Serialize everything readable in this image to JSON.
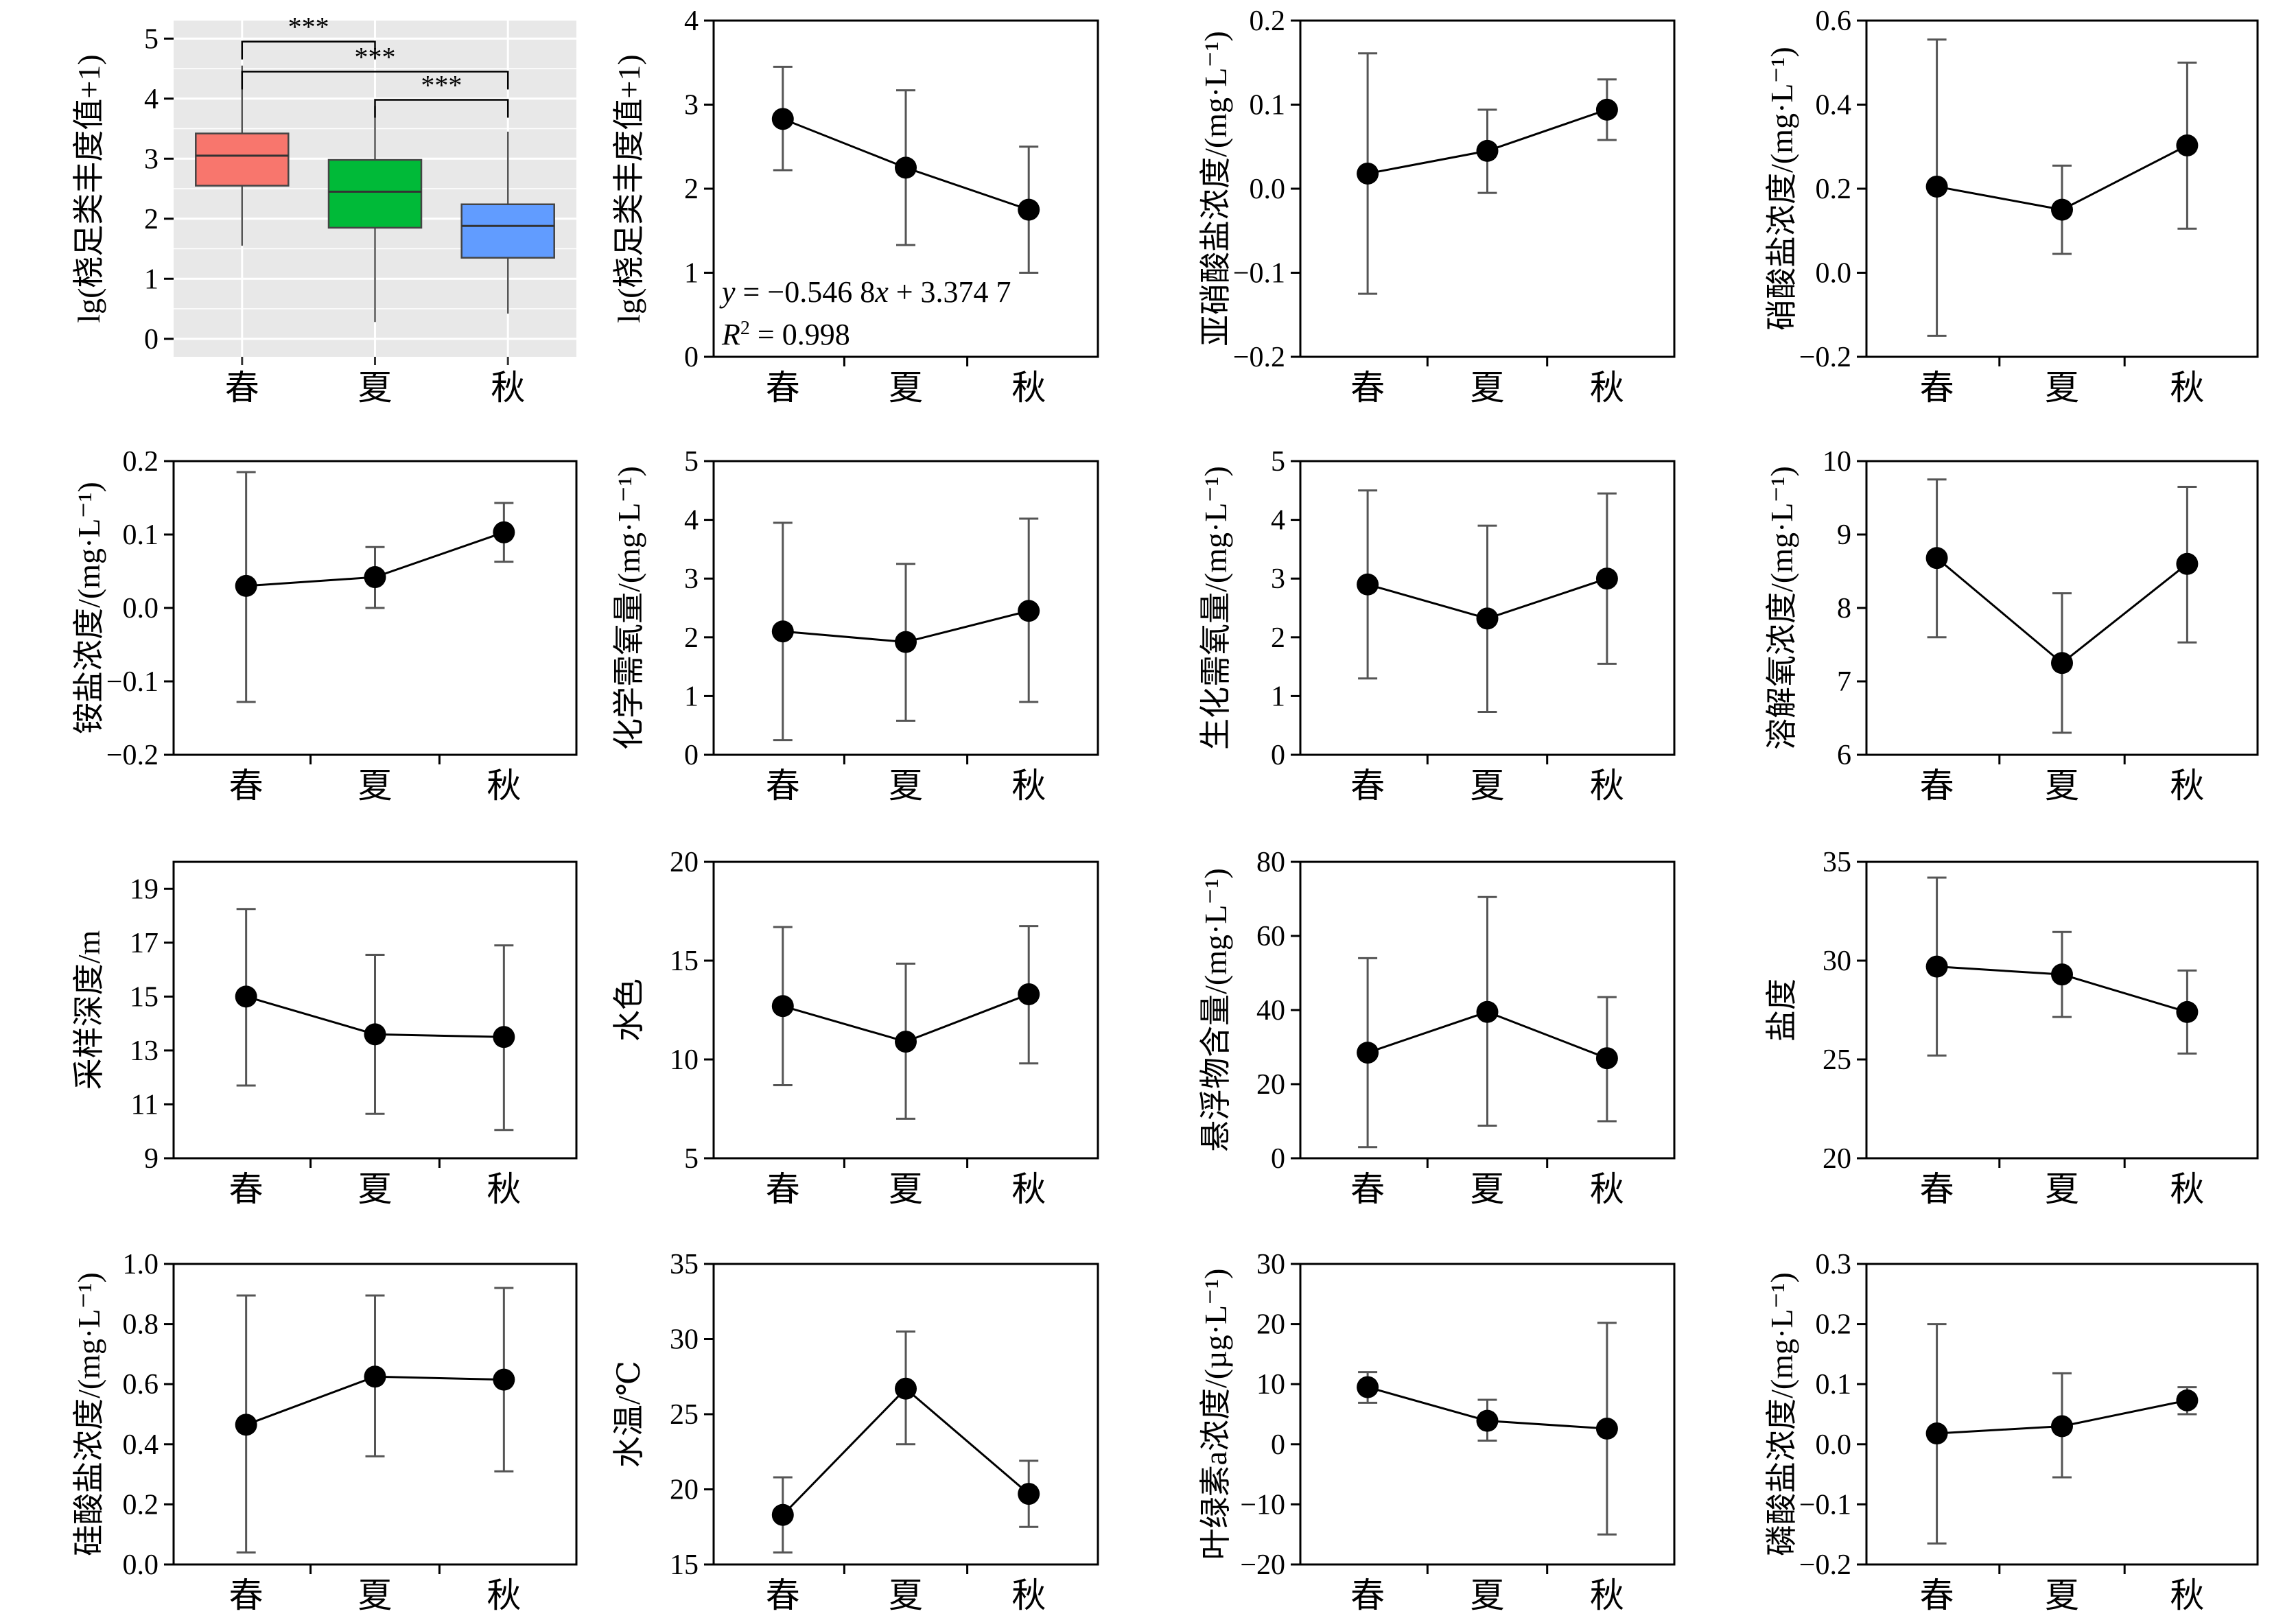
{
  "chart_data": [
    {
      "type": "box",
      "ylabel": "lg(桡足类丰度值+1)",
      "categories": [
        "春",
        "夏",
        "秋"
      ],
      "ylim": [
        -0.3,
        5.3
      ],
      "yticks": [
        0,
        1,
        2,
        3,
        4,
        5
      ],
      "background": "#e8e8e8",
      "boxes": [
        {
          "name": "春",
          "whisker_low": 1.55,
          "q1": 2.55,
          "median": 3.05,
          "q3": 3.42,
          "whisker_high": 4.55,
          "color": "#f8766d"
        },
        {
          "name": "夏",
          "whisker_low": 0.28,
          "q1": 1.85,
          "median": 2.45,
          "q3": 2.98,
          "whisker_high": 3.88,
          "color": "#00ba38"
        },
        {
          "name": "秋",
          "whisker_low": 0.42,
          "q1": 1.35,
          "median": 1.88,
          "q3": 2.24,
          "whisker_high": 3.45,
          "color": "#619cff"
        }
      ],
      "significance": [
        {
          "from": "春",
          "to": "夏",
          "label": "***"
        },
        {
          "from": "春",
          "to": "秋",
          "label": "***"
        },
        {
          "from": "夏",
          "to": "秋",
          "label": "***"
        }
      ]
    },
    {
      "type": "line_errorbar",
      "ylabel": "lg(桡足类丰度值+1)",
      "categories": [
        "春",
        "夏",
        "秋"
      ],
      "ylim": [
        0,
        4
      ],
      "yticks": [
        0,
        1,
        2,
        3,
        4
      ],
      "values": [
        2.83,
        2.25,
        1.75
      ],
      "err_low": [
        2.22,
        1.33,
        1.0
      ],
      "err_high": [
        3.45,
        3.17,
        2.5
      ],
      "annotation": [
        "y = −0.546 8x + 3.374 7",
        "R² = 0.998"
      ]
    },
    {
      "type": "line_errorbar",
      "ylabel": "亚硝酸盐浓度/(mg·L⁻¹)",
      "categories": [
        "春",
        "夏",
        "秋"
      ],
      "ylim": [
        -0.2,
        0.2
      ],
      "yticks": [
        -0.2,
        -0.1,
        0.0,
        0.1,
        0.2
      ],
      "values": [
        0.018,
        0.045,
        0.094
      ],
      "err_low": [
        -0.125,
        -0.005,
        0.058
      ],
      "err_high": [
        0.161,
        0.094,
        0.13
      ]
    },
    {
      "type": "line_errorbar",
      "ylabel": "硝酸盐浓度/(mg·L⁻¹)",
      "categories": [
        "春",
        "夏",
        "秋"
      ],
      "ylim": [
        -0.2,
        0.6
      ],
      "yticks": [
        -0.2,
        0.0,
        0.2,
        0.4,
        0.6
      ],
      "values": [
        0.205,
        0.15,
        0.303
      ],
      "err_low": [
        -0.15,
        0.045,
        0.105
      ],
      "err_high": [
        0.555,
        0.255,
        0.5
      ]
    },
    {
      "type": "line_errorbar",
      "ylabel": "铵盐浓度/(mg·L⁻¹)",
      "categories": [
        "春",
        "夏",
        "秋"
      ],
      "ylim": [
        -0.2,
        0.2
      ],
      "yticks": [
        -0.2,
        -0.1,
        0.0,
        0.1,
        0.2
      ],
      "values": [
        0.03,
        0.042,
        0.103
      ],
      "err_low": [
        -0.128,
        0.0,
        0.063
      ],
      "err_high": [
        0.185,
        0.083,
        0.143
      ]
    },
    {
      "type": "line_errorbar",
      "ylabel": "化学需氧量/(mg·L⁻¹)",
      "categories": [
        "春",
        "夏",
        "秋"
      ],
      "ylim": [
        0,
        5
      ],
      "yticks": [
        0,
        1,
        2,
        3,
        4,
        5
      ],
      "values": [
        2.1,
        1.92,
        2.45
      ],
      "err_low": [
        0.25,
        0.58,
        0.9
      ],
      "err_high": [
        3.95,
        3.25,
        4.02
      ]
    },
    {
      "type": "line_errorbar",
      "ylabel": "生化需氧量/(mg·L⁻¹)",
      "categories": [
        "春",
        "夏",
        "秋"
      ],
      "ylim": [
        0,
        5
      ],
      "yticks": [
        0,
        1,
        2,
        3,
        4,
        5
      ],
      "values": [
        2.9,
        2.32,
        3.0
      ],
      "err_low": [
        1.3,
        0.73,
        1.55
      ],
      "err_high": [
        4.5,
        3.9,
        4.45
      ]
    },
    {
      "type": "line_errorbar",
      "ylabel": "溶解氧浓度/(mg·L⁻¹)",
      "categories": [
        "春",
        "夏",
        "秋"
      ],
      "ylim": [
        6,
        10
      ],
      "yticks": [
        6,
        7,
        8,
        9,
        10
      ],
      "values": [
        8.68,
        7.25,
        8.6
      ],
      "err_low": [
        7.6,
        6.3,
        7.53
      ],
      "err_high": [
        9.75,
        8.2,
        9.65
      ]
    },
    {
      "type": "line_errorbar",
      "ylabel": "采样深度/m",
      "categories": [
        "春",
        "夏",
        "秋"
      ],
      "ylim": [
        9,
        20
      ],
      "yticks": [
        9,
        11,
        13,
        15,
        17,
        19
      ],
      "values": [
        15.0,
        13.6,
        13.5
      ],
      "err_low": [
        11.7,
        10.65,
        10.05
      ],
      "err_high": [
        18.25,
        16.55,
        16.9
      ]
    },
    {
      "type": "line_errorbar",
      "ylabel": "水色",
      "categories": [
        "春",
        "夏",
        "秋"
      ],
      "ylim": [
        5,
        20
      ],
      "yticks": [
        5,
        10,
        15,
        20
      ],
      "values": [
        12.7,
        10.9,
        13.3
      ],
      "err_low": [
        8.7,
        7.0,
        9.8
      ],
      "err_high": [
        16.7,
        14.85,
        16.75
      ]
    },
    {
      "type": "line_errorbar",
      "ylabel": "悬浮物含量/(mg·L⁻¹)",
      "categories": [
        "春",
        "夏",
        "秋"
      ],
      "ylim": [
        0,
        80
      ],
      "yticks": [
        0,
        20,
        40,
        60,
        80
      ],
      "values": [
        28.5,
        39.5,
        27.0
      ],
      "err_low": [
        3.0,
        8.8,
        10.0
      ],
      "err_high": [
        54.0,
        70.5,
        43.5
      ]
    },
    {
      "type": "line_errorbar",
      "ylabel": "盐度",
      "categories": [
        "春",
        "夏",
        "秋"
      ],
      "ylim": [
        20,
        35
      ],
      "yticks": [
        20,
        25,
        30,
        35
      ],
      "values": [
        29.7,
        29.3,
        27.4
      ],
      "err_low": [
        25.2,
        27.15,
        25.3
      ],
      "err_high": [
        34.2,
        31.45,
        29.5
      ]
    },
    {
      "type": "line_errorbar",
      "ylabel": "硅酸盐浓度/(mg·L⁻¹)",
      "categories": [
        "春",
        "夏",
        "秋"
      ],
      "ylim": [
        0,
        1.0
      ],
      "yticks": [
        0.0,
        0.2,
        0.4,
        0.6,
        0.8,
        1.0
      ],
      "values": [
        0.465,
        0.625,
        0.615
      ],
      "err_low": [
        0.04,
        0.36,
        0.31
      ],
      "err_high": [
        0.895,
        0.895,
        0.92
      ]
    },
    {
      "type": "line_errorbar",
      "ylabel": "水温/℃",
      "categories": [
        "春",
        "夏",
        "秋"
      ],
      "ylim": [
        15,
        35
      ],
      "yticks": [
        15,
        20,
        25,
        30,
        35
      ],
      "values": [
        18.3,
        26.7,
        19.7
      ],
      "err_low": [
        15.8,
        23.0,
        17.5
      ],
      "err_high": [
        20.8,
        30.5,
        21.9
      ]
    },
    {
      "type": "line_errorbar",
      "ylabel": "叶绿素a浓度/(µg·L⁻¹)",
      "categories": [
        "春",
        "夏",
        "秋"
      ],
      "ylim": [
        -20,
        30
      ],
      "yticks": [
        -20,
        -10,
        0,
        10,
        20,
        30
      ],
      "values": [
        9.5,
        3.9,
        2.6
      ],
      "err_low": [
        6.9,
        0.6,
        -15.0
      ],
      "err_high": [
        12.0,
        7.4,
        20.2
      ]
    },
    {
      "type": "line_errorbar",
      "ylabel": "磷酸盐浓度/(mg·L⁻¹)",
      "categories": [
        "春",
        "夏",
        "秋"
      ],
      "ylim": [
        -0.2,
        0.3
      ],
      "yticks": [
        -0.2,
        -0.1,
        0.0,
        0.1,
        0.2,
        0.3
      ],
      "values": [
        0.018,
        0.03,
        0.073
      ],
      "err_low": [
        -0.165,
        -0.055,
        0.05
      ],
      "err_high": [
        0.2,
        0.118,
        0.095
      ]
    }
  ]
}
